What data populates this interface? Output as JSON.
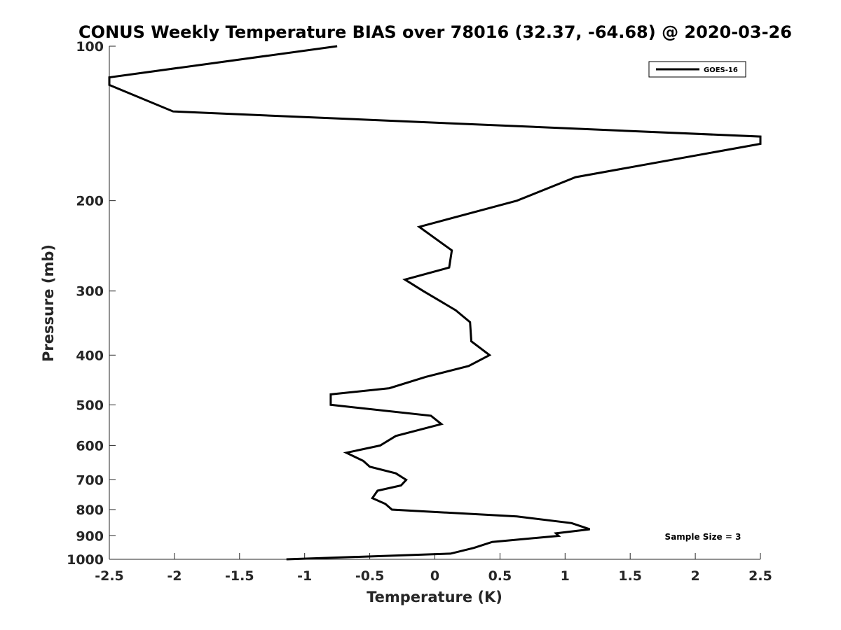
{
  "chart_data": {
    "type": "line",
    "title": "CONUS Weekly Temperature BIAS over 78016 (32.37, -64.68) @ 2020-03-26",
    "xlabel": "Temperature (K)",
    "ylabel": "Pressure (mb)",
    "xlim": [
      -2.5,
      2.5
    ],
    "ylim": [
      100,
      1000
    ],
    "yscale": "log",
    "yreversed": true,
    "grid": false,
    "legend_position": "top-right",
    "xticks": [
      -2.5,
      -2,
      -1.5,
      -1,
      -0.5,
      0,
      0.5,
      1,
      1.5,
      2,
      2.5
    ],
    "xtick_labels": [
      "-2.5",
      "-2",
      "-1.5",
      "-1",
      "-0.5",
      "0",
      "0.5",
      "1",
      "1.5",
      "2",
      "2.5"
    ],
    "yticks": [
      100,
      200,
      300,
      400,
      500,
      600,
      700,
      800,
      900,
      1000
    ],
    "ytick_labels": [
      "100",
      "200",
      "300",
      "400",
      "500",
      "600",
      "700",
      "800",
      "900",
      "1000"
    ],
    "annotation": "Sample Size = 3",
    "series": [
      {
        "name": "GOES-16",
        "color": "#000000",
        "points": [
          {
            "x": -0.75,
            "p": 100
          },
          {
            "x": -2.5,
            "p": 115
          },
          {
            "x": -2.5,
            "p": 119
          },
          {
            "x": -2.01,
            "p": 134
          },
          {
            "x": 2.5,
            "p": 150
          },
          {
            "x": 2.5,
            "p": 155
          },
          {
            "x": 1.08,
            "p": 180
          },
          {
            "x": 0.63,
            "p": 200
          },
          {
            "x": -0.12,
            "p": 225
          },
          {
            "x": 0.13,
            "p": 250
          },
          {
            "x": 0.11,
            "p": 270
          },
          {
            "x": -0.23,
            "p": 285
          },
          {
            "x": -0.09,
            "p": 300
          },
          {
            "x": 0.16,
            "p": 327
          },
          {
            "x": 0.27,
            "p": 345
          },
          {
            "x": 0.28,
            "p": 376
          },
          {
            "x": 0.42,
            "p": 400
          },
          {
            "x": 0.26,
            "p": 420
          },
          {
            "x": -0.07,
            "p": 441
          },
          {
            "x": -0.35,
            "p": 464
          },
          {
            "x": -0.8,
            "p": 477
          },
          {
            "x": -0.8,
            "p": 500
          },
          {
            "x": -0.03,
            "p": 525
          },
          {
            "x": 0.05,
            "p": 545
          },
          {
            "x": -0.3,
            "p": 575
          },
          {
            "x": -0.42,
            "p": 600
          },
          {
            "x": -0.68,
            "p": 620
          },
          {
            "x": -0.55,
            "p": 643
          },
          {
            "x": -0.5,
            "p": 660
          },
          {
            "x": -0.3,
            "p": 680
          },
          {
            "x": -0.22,
            "p": 700
          },
          {
            "x": -0.26,
            "p": 718
          },
          {
            "x": -0.44,
            "p": 735
          },
          {
            "x": -0.48,
            "p": 760
          },
          {
            "x": -0.38,
            "p": 780
          },
          {
            "x": -0.33,
            "p": 800
          },
          {
            "x": 0.63,
            "p": 825
          },
          {
            "x": 1.05,
            "p": 850
          },
          {
            "x": 1.19,
            "p": 874
          },
          {
            "x": 0.93,
            "p": 890
          },
          {
            "x": 0.95,
            "p": 900
          },
          {
            "x": 0.44,
            "p": 925
          },
          {
            "x": 0.3,
            "p": 950
          },
          {
            "x": 0.12,
            "p": 975
          },
          {
            "x": -1.14,
            "p": 1000
          }
        ]
      }
    ]
  }
}
